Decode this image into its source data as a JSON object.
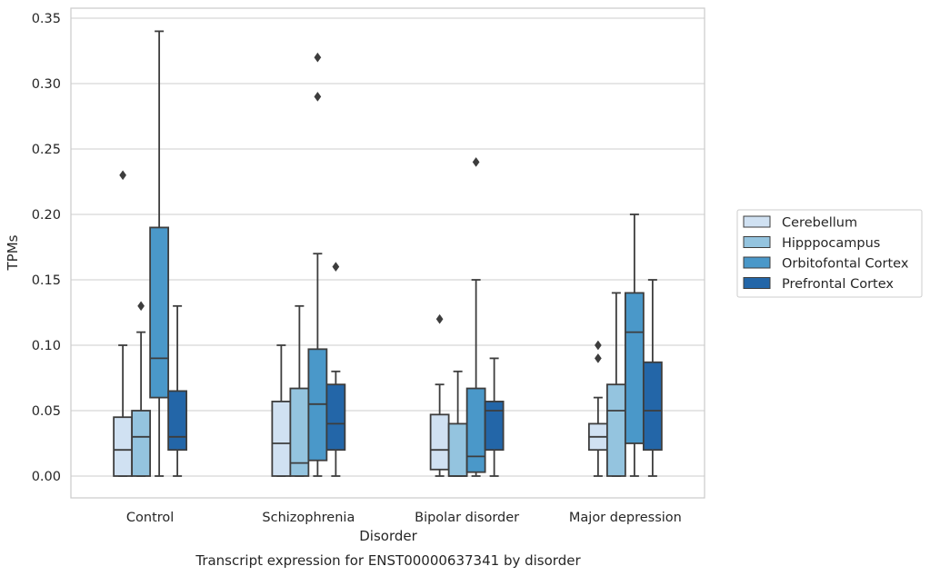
{
  "chart_data": {
    "type": "box",
    "title": "",
    "caption": "Transcript expression for ENST00000637341 by disorder",
    "xlabel": "Disorder",
    "ylabel": "TPMs",
    "ylim": [
      -0.017,
      0.357
    ],
    "yticks": [
      "0.00",
      "0.05",
      "0.10",
      "0.15",
      "0.20",
      "0.25",
      "0.30",
      "0.35"
    ],
    "categories": [
      "Control",
      "Schizophrenia",
      "Bipolar disorder",
      "Major depression"
    ],
    "grid": true,
    "legend_position": "right",
    "series": [
      {
        "name": "Cerebellum",
        "color": "#d0e1f2",
        "boxes": [
          {
            "min": 0.0,
            "q1": 0.0,
            "median": 0.02,
            "q3": 0.045,
            "max": 0.1,
            "outliers": [
              0.23
            ]
          },
          {
            "min": 0.0,
            "q1": 0.0,
            "median": 0.025,
            "q3": 0.057,
            "max": 0.1,
            "outliers": []
          },
          {
            "min": 0.0,
            "q1": 0.005,
            "median": 0.02,
            "q3": 0.047,
            "max": 0.07,
            "outliers": [
              0.12
            ]
          },
          {
            "min": 0.0,
            "q1": 0.02,
            "median": 0.03,
            "q3": 0.04,
            "max": 0.06,
            "outliers": [
              0.09,
              0.1
            ]
          }
        ]
      },
      {
        "name": "Hipppocampus",
        "color": "#94c4df",
        "boxes": [
          {
            "min": 0.0,
            "q1": 0.0,
            "median": 0.03,
            "q3": 0.05,
            "max": 0.11,
            "outliers": [
              0.13
            ]
          },
          {
            "min": 0.0,
            "q1": 0.0,
            "median": 0.01,
            "q3": 0.067,
            "max": 0.13,
            "outliers": []
          },
          {
            "min": 0.0,
            "q1": 0.0,
            "median": 0.0,
            "q3": 0.04,
            "max": 0.08,
            "outliers": []
          },
          {
            "min": 0.0,
            "q1": 0.0,
            "median": 0.05,
            "q3": 0.07,
            "max": 0.14,
            "outliers": []
          }
        ]
      },
      {
        "name": "Orbitofontal Cortex",
        "color": "#4a98c9",
        "boxes": [
          {
            "min": 0.0,
            "q1": 0.06,
            "median": 0.09,
            "q3": 0.19,
            "max": 0.34,
            "outliers": []
          },
          {
            "min": 0.0,
            "q1": 0.012,
            "median": 0.055,
            "q3": 0.097,
            "max": 0.17,
            "outliers": [
              0.29,
              0.32
            ]
          },
          {
            "min": 0.0,
            "q1": 0.003,
            "median": 0.015,
            "q3": 0.067,
            "max": 0.15,
            "outliers": [
              0.24
            ]
          },
          {
            "min": 0.0,
            "q1": 0.025,
            "median": 0.11,
            "q3": 0.14,
            "max": 0.2,
            "outliers": []
          }
        ]
      },
      {
        "name": "Prefrontal Cortex",
        "color": "#2366a8",
        "boxes": [
          {
            "min": 0.0,
            "q1": 0.02,
            "median": 0.03,
            "q3": 0.065,
            "max": 0.13,
            "outliers": []
          },
          {
            "min": 0.0,
            "q1": 0.02,
            "median": 0.04,
            "q3": 0.07,
            "max": 0.08,
            "outliers": [
              0.16
            ]
          },
          {
            "min": 0.0,
            "q1": 0.02,
            "median": 0.05,
            "q3": 0.057,
            "max": 0.09,
            "outliers": []
          },
          {
            "min": 0.0,
            "q1": 0.02,
            "median": 0.05,
            "q3": 0.087,
            "max": 0.15,
            "outliers": []
          }
        ]
      }
    ]
  }
}
